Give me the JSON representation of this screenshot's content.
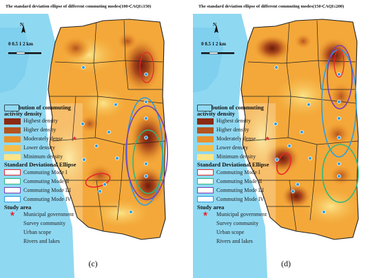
{
  "panels": [
    {
      "title": "The standard deviation ellipse of different commuting modes(100＜AQI≤150)",
      "caption": "(c)"
    },
    {
      "title": "The standard deviation ellipse of different commuting modes(150＜AQI≤200)",
      "caption": "(d)"
    }
  ],
  "north_label": "N",
  "scale_label": "0 0.5 1     2 km",
  "legend": {
    "density_heading": "Distribution of commuting activity density",
    "density_items": [
      {
        "label": "Highest density",
        "color": "#8b2a12"
      },
      {
        "label": "Higher density",
        "color": "#b5541f"
      },
      {
        "label": "Moderately dense",
        "color": "#e8902b"
      },
      {
        "label": "Lower density",
        "color": "#f6bd48"
      },
      {
        "label": "Minimum density",
        "color": "#fbe48a"
      }
    ],
    "ellipse_heading": "Standard Deviational Ellipse",
    "ellipse_items": [
      {
        "label": "Commuting Mode I",
        "color": "#e8262f"
      },
      {
        "label": "Commuting Mode II",
        "color": "#2fb77a"
      },
      {
        "label": "Commuting Mode III",
        "color": "#7b3fb0"
      },
      {
        "label": "Commuting Mode IV",
        "color": "#2a9de0"
      }
    ],
    "study_heading": "Study area",
    "study_items": [
      {
        "label": "Municipal government",
        "symbol": "red-star-icon"
      },
      {
        "label": "Survey community",
        "symbol": "survey-point-icon"
      },
      {
        "label": "Urban scope",
        "symbol": "urban-scope-icon"
      },
      {
        "label": "Rivers and lakes",
        "symbol": "water-icon"
      }
    ]
  },
  "colors": {
    "water": "#8fd8f2",
    "base": "#f4a83a",
    "boundary": "#222222"
  }
}
